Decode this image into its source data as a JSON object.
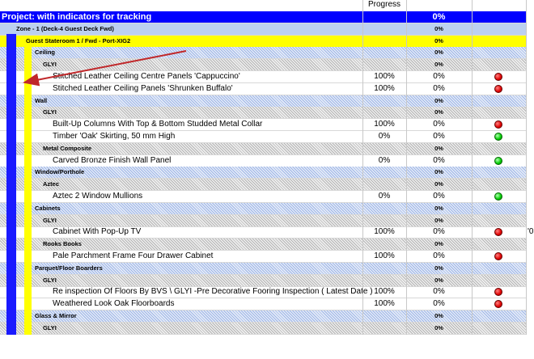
{
  "header": {
    "progress_label": "Progress"
  },
  "rows": [
    {
      "level": "project",
      "name": "Project: with indicators for tracking",
      "progress": null,
      "complete": "0%"
    },
    {
      "level": "zone",
      "name": "Zone - 1   (Deck-4 Guest Deck Fwd)",
      "progress": null,
      "complete": "0%"
    },
    {
      "level": "room",
      "name": "Guest Stateroom 1 / Fwd - Port-XIG2",
      "progress": null,
      "complete": "0%"
    },
    {
      "level": "section",
      "name": "Ceiling",
      "progress": null,
      "complete": "0%"
    },
    {
      "level": "group",
      "name": "GLYI",
      "progress": null,
      "complete": "0%"
    },
    {
      "level": "item",
      "name": "Stitched Leather Ceiling Centre Panels 'Cappuccino'",
      "progress": "100%",
      "complete": "0%",
      "indicator": "red"
    },
    {
      "level": "item",
      "name": "Stitched Leather Ceiling Panels 'Shrunken Buffalo'",
      "progress": "100%",
      "complete": "0%",
      "indicator": "red"
    },
    {
      "level": "section",
      "name": "Wall",
      "progress": null,
      "complete": "0%"
    },
    {
      "level": "group",
      "name": "GLYI",
      "progress": null,
      "complete": "0%"
    },
    {
      "level": "item",
      "name": "Built-Up Columns With Top & Bottom Studded Metal Collar",
      "progress": "100%",
      "complete": "0%",
      "indicator": "red"
    },
    {
      "level": "item",
      "name": "Timber 'Oak' Skirting, 50 mm High",
      "progress": "0%",
      "complete": "0%",
      "indicator": "green"
    },
    {
      "level": "group",
      "name": "Metal Composite",
      "progress": null,
      "complete": "0%"
    },
    {
      "level": "item",
      "name": "Carved Bronze Finish Wall Panel",
      "progress": "0%",
      "complete": "0%",
      "indicator": "green"
    },
    {
      "level": "section",
      "name": "Window/Porthole",
      "progress": null,
      "complete": "0%"
    },
    {
      "level": "group",
      "name": "Aztec",
      "progress": null,
      "complete": "0%"
    },
    {
      "level": "item",
      "name": "Aztec 2 Window Mullions",
      "progress": "0%",
      "complete": "0%",
      "indicator": "green"
    },
    {
      "level": "section",
      "name": "Cabinets",
      "progress": null,
      "complete": "0%"
    },
    {
      "level": "group",
      "name": "GLYI",
      "progress": null,
      "complete": "0%"
    },
    {
      "level": "item",
      "name": "Cabinet With Pop-Up TV",
      "progress": "100%",
      "complete": "0%",
      "indicator": "red",
      "extra": "'0"
    },
    {
      "level": "group",
      "name": "Rooks Books",
      "progress": null,
      "complete": "0%"
    },
    {
      "level": "item",
      "name": "Pale Parchment Frame   Four Drawer Cabinet",
      "progress": "100%",
      "complete": "0%",
      "indicator": "red"
    },
    {
      "level": "section",
      "name": "Parquet/Floor Boarders",
      "progress": null,
      "complete": "0%"
    },
    {
      "level": "group",
      "name": "GLYI",
      "progress": null,
      "complete": "0%"
    },
    {
      "level": "item",
      "name": "Re inspection Of Floors By BVS \\ GLYI -Pre Decorative Fooring Inspection ( Latest Date )",
      "progress": "100%",
      "complete": "0%",
      "indicator": "red"
    },
    {
      "level": "item",
      "name": "Weathered Look Oak Floorboards",
      "progress": "100%",
      "complete": "0%",
      "indicator": "red"
    },
    {
      "level": "section",
      "name": "Glass & Mirror",
      "progress": null,
      "complete": "0%"
    },
    {
      "level": "group",
      "name": "GLYI",
      "progress": null,
      "complete": "0%"
    }
  ]
}
